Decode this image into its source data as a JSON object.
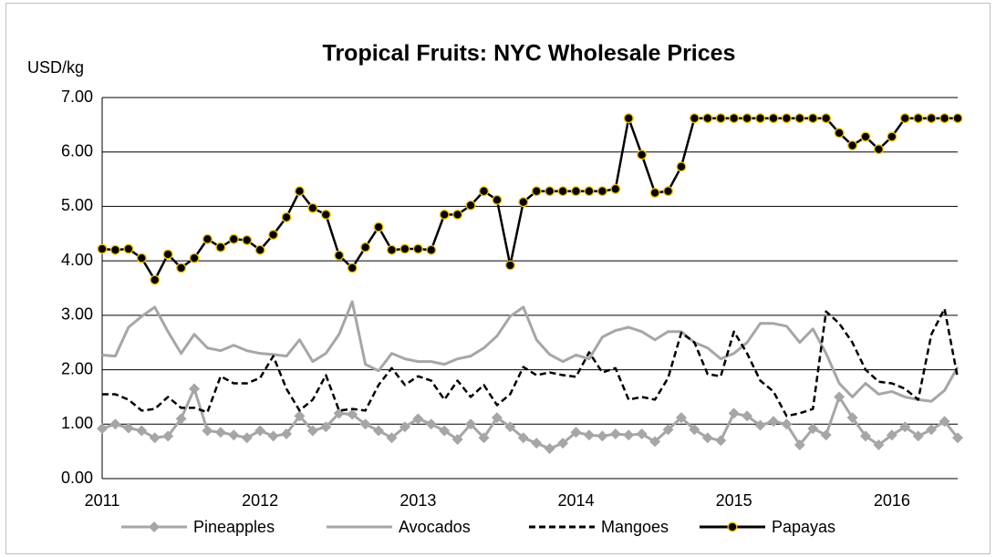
{
  "chart_data": {
    "type": "line",
    "title": "Tropical Fruits:  NYC Wholesale Prices",
    "y_label": "USD/kg",
    "categories": [
      "2011",
      null,
      null,
      null,
      null,
      null,
      null,
      null,
      null,
      null,
      null,
      null,
      "2012",
      null,
      null,
      null,
      null,
      null,
      null,
      null,
      null,
      null,
      null,
      null,
      "2013",
      null,
      null,
      null,
      null,
      null,
      null,
      null,
      null,
      null,
      null,
      null,
      "2014",
      null,
      null,
      null,
      null,
      null,
      null,
      null,
      null,
      null,
      null,
      null,
      "2015",
      null,
      null,
      null,
      null,
      null,
      null,
      null,
      null,
      null,
      null,
      null,
      "2016",
      null,
      null,
      null,
      null,
      null
    ],
    "ylim": [
      0,
      7
    ],
    "yticks": [
      {
        "value": 0,
        "label": "0.00"
      },
      {
        "value": 1,
        "label": "1.00"
      },
      {
        "value": 2,
        "label": "2.00"
      },
      {
        "value": 3,
        "label": "3.00"
      },
      {
        "value": 4,
        "label": "4.00"
      },
      {
        "value": 5,
        "label": "5.00"
      },
      {
        "value": 6,
        "label": "6.00"
      },
      {
        "value": 7,
        "label": "7.00"
      }
    ],
    "grid": true,
    "legend": "bottom",
    "series": [
      {
        "name": "Pineapples",
        "color": "#a6a6a6",
        "dash": "solid",
        "marker": "diamond",
        "values": [
          0.92,
          1.0,
          0.93,
          0.88,
          0.75,
          0.78,
          1.1,
          1.65,
          0.88,
          0.85,
          0.8,
          0.75,
          0.88,
          0.78,
          0.82,
          1.15,
          0.88,
          0.95,
          1.2,
          1.18,
          1.0,
          0.88,
          0.75,
          0.95,
          1.1,
          1.0,
          0.88,
          0.72,
          1.0,
          0.75,
          1.12,
          0.95,
          0.75,
          0.65,
          0.55,
          0.65,
          0.85,
          0.8,
          0.78,
          0.82,
          0.8,
          0.82,
          0.68,
          0.9,
          1.12,
          0.9,
          0.75,
          0.7,
          1.2,
          1.15,
          0.98,
          1.05,
          1.0,
          0.62,
          0.92,
          0.8,
          1.5,
          1.12,
          0.78,
          0.62,
          0.8,
          0.95,
          0.78,
          0.9,
          1.05,
          0.75
        ]
      },
      {
        "name": "Avocados",
        "color": "#a6a6a6",
        "dash": "solid",
        "marker": "none",
        "values": [
          2.27,
          2.25,
          2.78,
          2.98,
          3.15,
          2.7,
          2.3,
          2.65,
          2.4,
          2.35,
          2.45,
          2.35,
          2.3,
          2.28,
          2.25,
          2.55,
          2.15,
          2.3,
          2.65,
          3.25,
          2.1,
          1.98,
          2.3,
          2.2,
          2.15,
          2.15,
          2.1,
          2.2,
          2.25,
          2.4,
          2.62,
          2.98,
          3.15,
          2.55,
          2.28,
          2.15,
          2.27,
          2.2,
          2.6,
          2.72,
          2.78,
          2.7,
          2.55,
          2.7,
          2.7,
          2.5,
          2.4,
          2.2,
          2.3,
          2.5,
          2.85,
          2.85,
          2.8,
          2.5,
          2.75,
          2.3,
          1.75,
          1.5,
          1.75,
          1.55,
          1.6,
          1.5,
          1.45,
          1.42,
          1.62,
          2.05
        ]
      },
      {
        "name": "Mangoes",
        "color": "#000000",
        "dash": "dashed",
        "marker": "none",
        "values": [
          1.55,
          1.55,
          1.45,
          1.25,
          1.28,
          1.5,
          1.3,
          1.3,
          1.22,
          1.88,
          1.75,
          1.75,
          1.85,
          2.25,
          1.65,
          1.25,
          1.45,
          1.9,
          1.25,
          1.28,
          1.25,
          1.72,
          2.03,
          1.72,
          1.88,
          1.8,
          1.45,
          1.8,
          1.5,
          1.72,
          1.35,
          1.55,
          2.05,
          1.9,
          1.95,
          1.9,
          1.87,
          2.32,
          1.95,
          2.03,
          1.45,
          1.5,
          1.45,
          1.85,
          2.68,
          2.5,
          1.92,
          1.88,
          2.7,
          2.3,
          1.8,
          1.6,
          1.15,
          1.2,
          1.28,
          3.07,
          2.85,
          2.5,
          2.0,
          1.78,
          1.75,
          1.65,
          1.45,
          2.65,
          3.12,
          1.85
        ]
      },
      {
        "name": "Papayas",
        "color": "#000000",
        "dash": "solid",
        "marker": "circle",
        "values": [
          4.22,
          4.2,
          4.22,
          4.05,
          3.65,
          4.12,
          3.87,
          4.05,
          4.4,
          4.25,
          4.4,
          4.38,
          4.2,
          4.48,
          4.8,
          5.28,
          4.97,
          4.85,
          4.1,
          3.87,
          4.25,
          4.62,
          4.2,
          4.22,
          4.22,
          4.2,
          4.85,
          4.85,
          5.02,
          5.28,
          5.12,
          3.92,
          5.08,
          5.28,
          5.28,
          5.28,
          5.28,
          5.28,
          5.28,
          5.32,
          6.62,
          5.95,
          5.25,
          5.28,
          5.73,
          6.62,
          6.62,
          6.62,
          6.62,
          6.62,
          6.62,
          6.62,
          6.62,
          6.62,
          6.62,
          6.62,
          6.35,
          6.12,
          6.28,
          6.05,
          6.28,
          6.62,
          6.62,
          6.62,
          6.62,
          6.62
        ]
      }
    ]
  }
}
